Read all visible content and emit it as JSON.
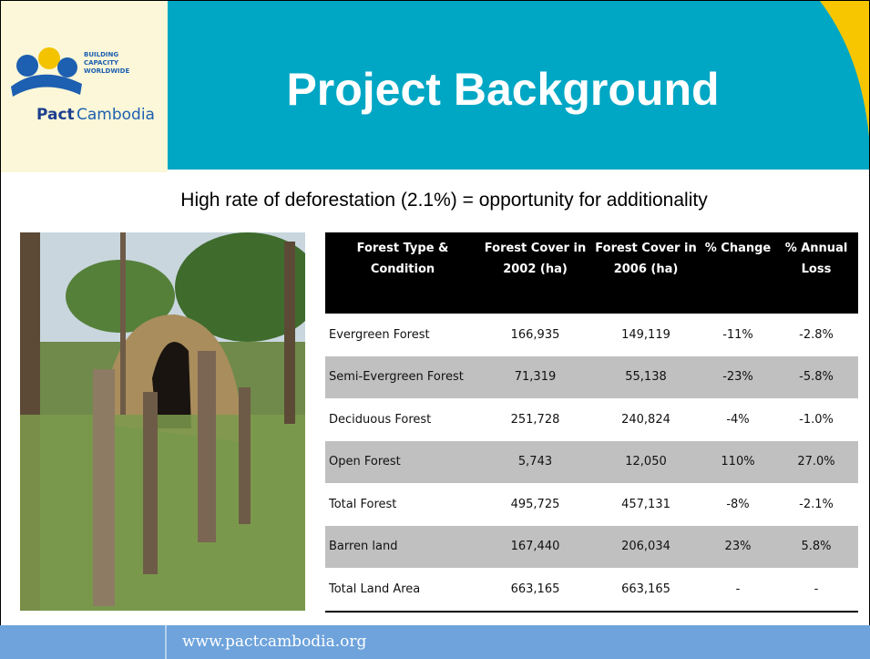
{
  "header": {
    "title": "Project Background"
  },
  "logo": {
    "tagline": [
      "BUILDING",
      "CAPACITY",
      "WORLDWIDE"
    ],
    "brand": "Pact",
    "location": "Cambodia"
  },
  "subtitle": "High rate of deforestation (2.1%) =  opportunity for additionality",
  "table": {
    "columns": [
      "Forest Type & Condition",
      "Forest Cover in 2002 (ha)",
      "Forest Cover in 2006 (ha)",
      "% Change",
      "% Annual Loss"
    ],
    "rows": [
      [
        "Evergreen Forest",
        "166,935",
        "149,119",
        "-11%",
        "-2.8%"
      ],
      [
        "Semi-Evergreen Forest",
        "71,319",
        "55,138",
        "-23%",
        "-5.8%"
      ],
      [
        "Deciduous Forest",
        "251,728",
        "240,824",
        "-4%",
        "-1.0%"
      ],
      [
        "Open Forest",
        "5,743",
        "12,050",
        "110%",
        "27.0%"
      ],
      [
        "Total Forest",
        "495,725",
        "457,131",
        "-8%",
        "-2.1%"
      ],
      [
        "Barren land",
        "167,440",
        "206,034",
        "23%",
        "5.8%"
      ],
      [
        "Total Land Area",
        "663,165",
        "663,165",
        "-",
        "-"
      ]
    ]
  },
  "footer": {
    "url": "www.pactcambodia.org"
  }
}
